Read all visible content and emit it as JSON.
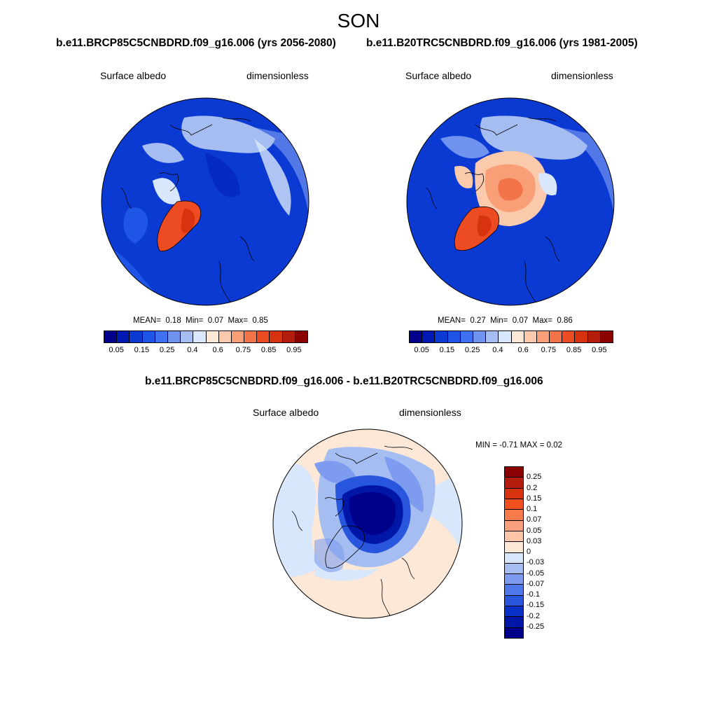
{
  "title": "SON",
  "panels": [
    {
      "run": "b.e11.BRCP85C5CNBDRD.f09_g16.006 (yrs 2056-2080)",
      "variable": "Surface albedo",
      "units": "dimensionless",
      "stats": {
        "mean_label": "MEAN=",
        "mean": "0.18",
        "min_label": "Min=",
        "min": "0.07",
        "max_label": "Max=",
        "max": "0.85"
      }
    },
    {
      "run": "b.e11.B20TRC5CNBDRD.f09_g16.006 (yrs 1981-2005)",
      "variable": "Surface albedo",
      "units": "dimensionless",
      "stats": {
        "mean_label": "MEAN=",
        "mean": "0.27",
        "min_label": "Min=",
        "min": "0.07",
        "max_label": "Max=",
        "max": "0.86"
      }
    }
  ],
  "difference": {
    "title": "b.e11.BRCP85C5CNBDRD.f09_g16.006 - b.e11.B20TRC5CNBDRD.f09_g16.006",
    "variable": "Surface albedo",
    "units": "dimensionless",
    "minmax_text": "MIN =  -0.71 MAX =   0.02"
  },
  "colorbar_abs": {
    "labels": [
      "0.05",
      "0.15",
      "0.25",
      "0.4",
      "0.6",
      "0.75",
      "0.85",
      "0.95"
    ],
    "colors": [
      "#00008b",
      "#0018b4",
      "#0a3ad2",
      "#1f55e6",
      "#3f72f2",
      "#7093f0",
      "#a6bdf2",
      "#d8e7fb",
      "#fde7d6",
      "#fbc9ab",
      "#f99f78",
      "#f47449",
      "#ed4b22",
      "#d8330f",
      "#b41d0b",
      "#8b0000"
    ]
  },
  "colorbar_diff": {
    "labels": [
      "0.25",
      "0.2",
      "0.15",
      "0.1",
      "0.07",
      "0.05",
      "0.03",
      "0",
      "-0.03",
      "-0.05",
      "-0.07",
      "-0.1",
      "-0.15",
      "-0.2",
      "-0.25"
    ],
    "colors": [
      "#8b0000",
      "#b41d0b",
      "#d8330f",
      "#f2501f",
      "#f77b4c",
      "#f9a07e",
      "#fbc6a8",
      "#fde8d8",
      "#d8e7fb",
      "#a6bdf2",
      "#7d9cf0",
      "#4f79ea",
      "#2857de",
      "#0a32c8",
      "#0016a6",
      "#00008b"
    ]
  }
}
